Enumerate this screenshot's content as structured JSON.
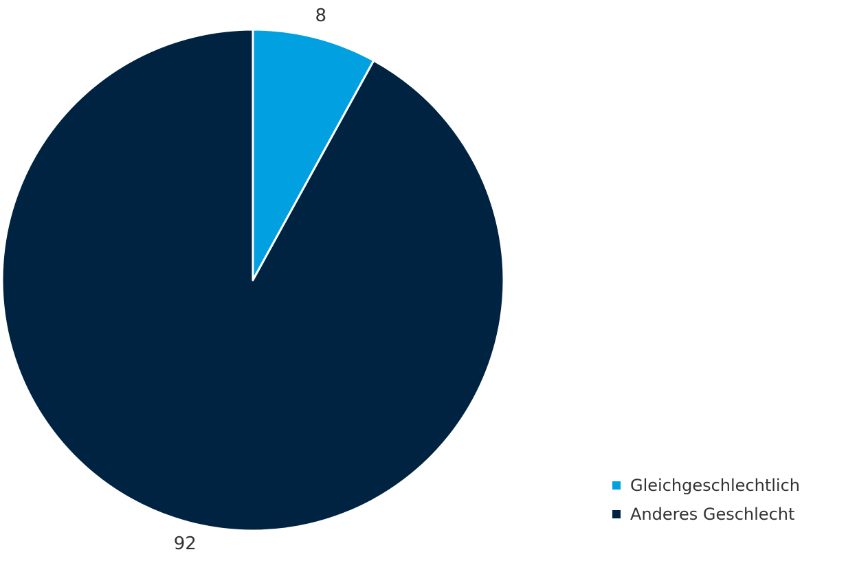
{
  "chart_data": {
    "type": "pie",
    "categories": [
      "Gleichgeschlechtlich",
      "Anderes Geschlecht"
    ],
    "values": [
      8,
      92
    ],
    "colors": [
      "#00a0e1",
      "#002341"
    ],
    "title": "",
    "legend_position": "bottom-right",
    "data_labels": [
      "8",
      "92"
    ],
    "start_angle": "top",
    "direction": "clockwise"
  }
}
